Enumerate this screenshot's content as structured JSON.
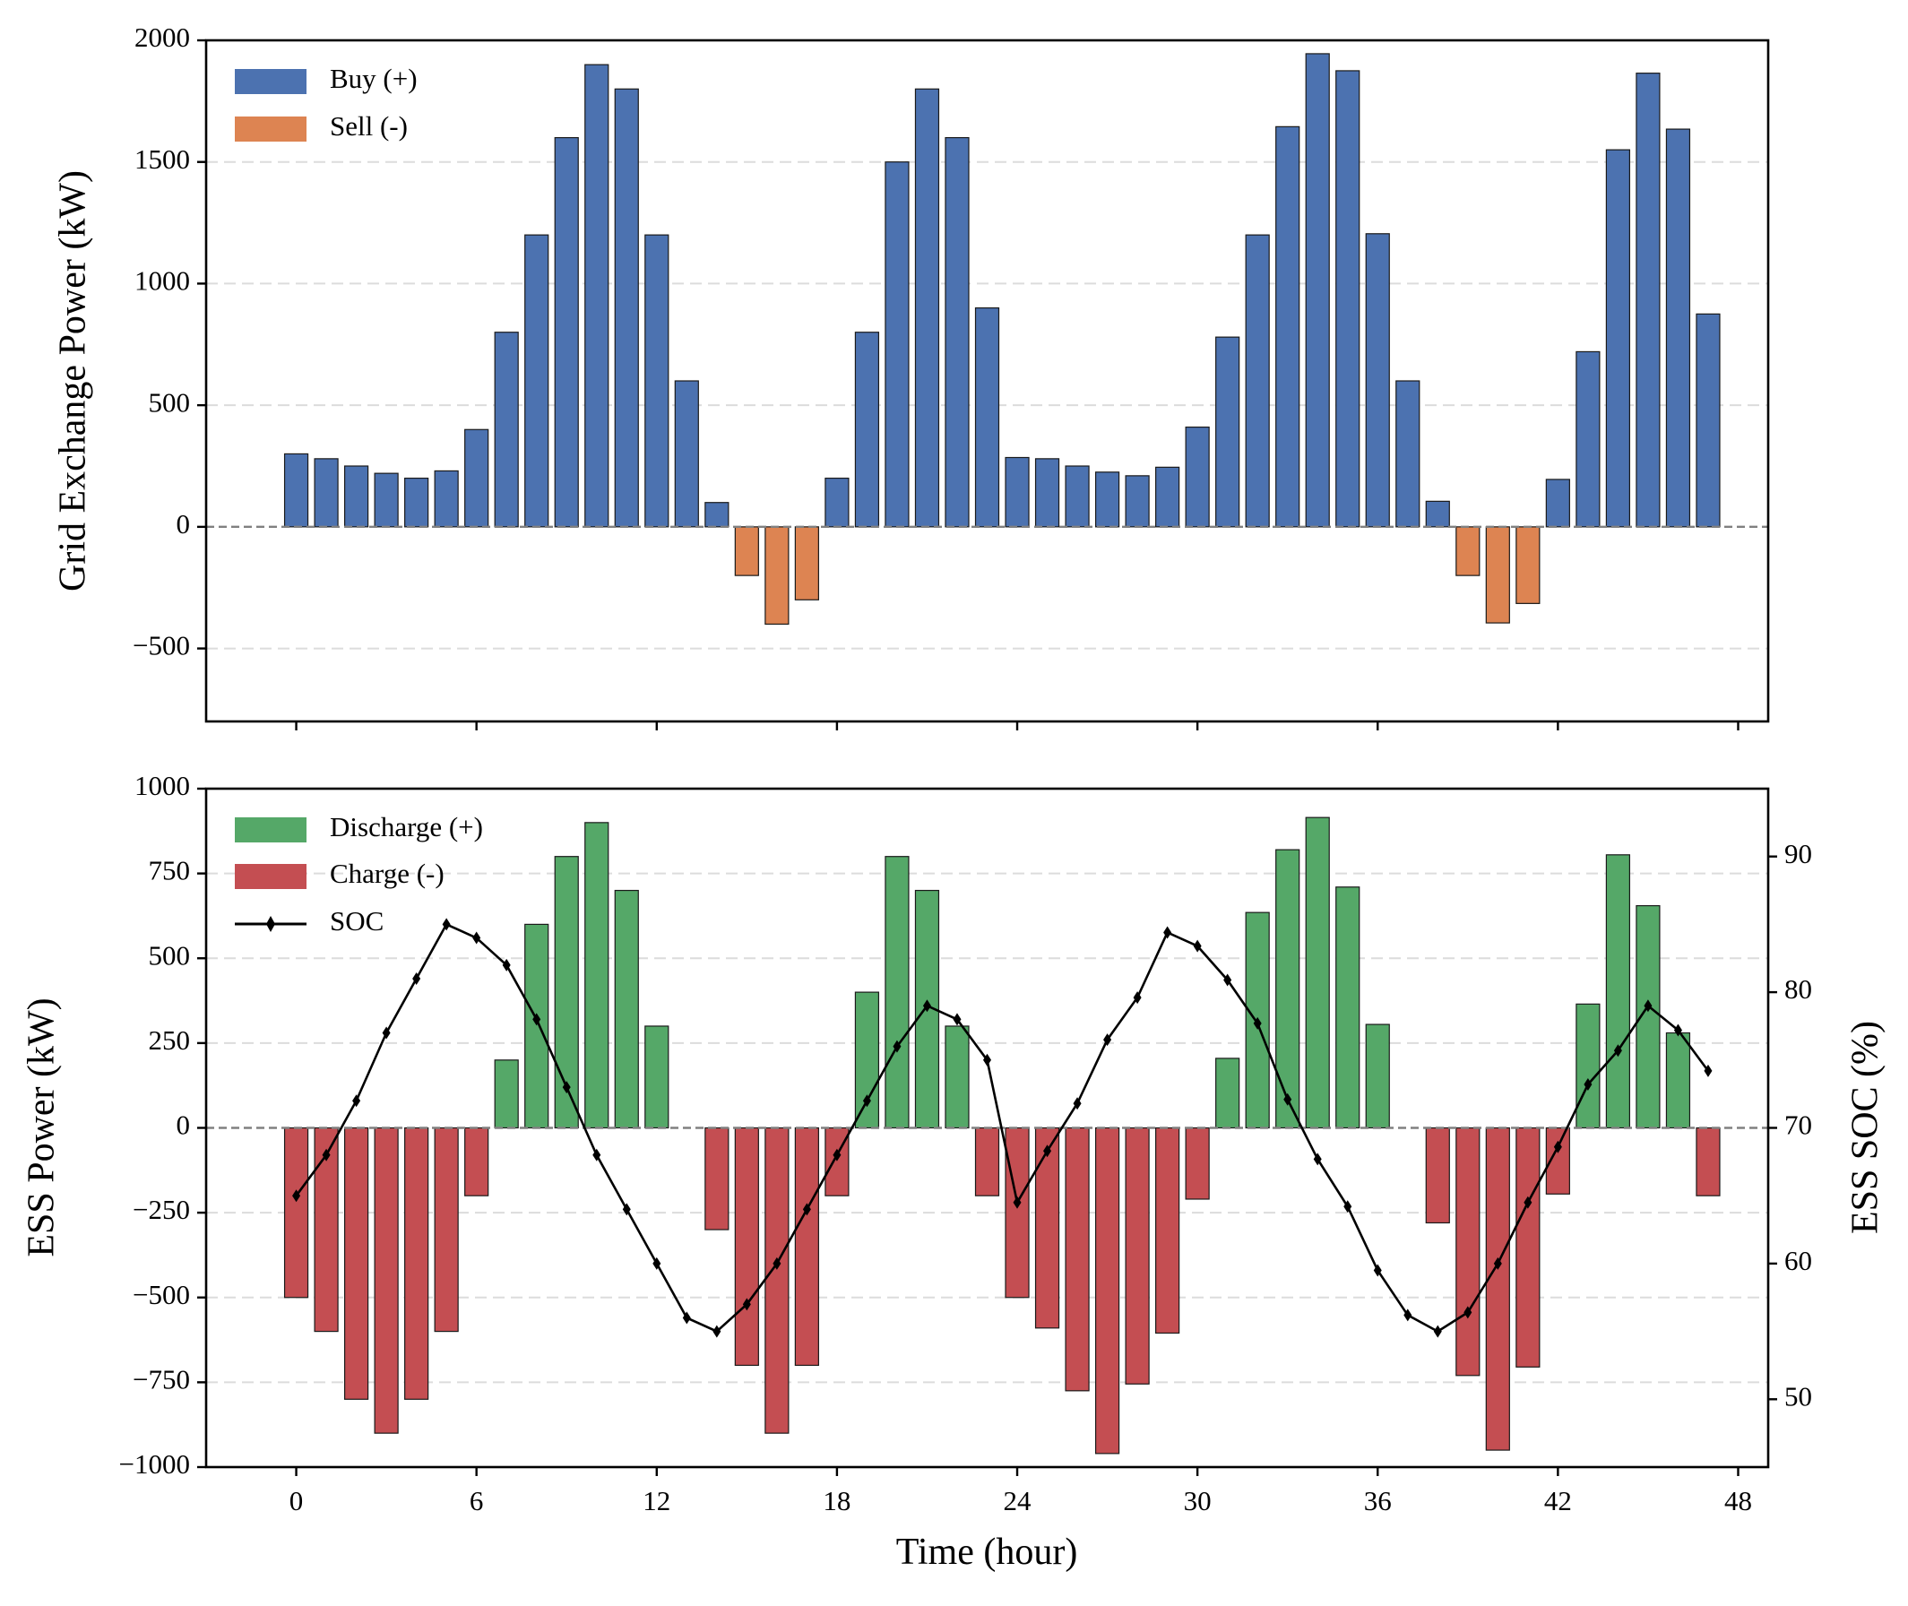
{
  "colors": {
    "buy": "#4c72b0",
    "sell": "#dd8452",
    "discharge": "#55a868",
    "charge": "#c44e52",
    "soc": "#000000"
  },
  "chart_data": [
    {
      "type": "bar",
      "name": "grid-exchange",
      "ylabel": "Grid Exchange Power (kW)",
      "xlabel": "",
      "ylim": [
        -800,
        2000
      ],
      "xlim": [
        -3,
        49
      ],
      "xticks": [
        0,
        6,
        12,
        18,
        24,
        30,
        36,
        42,
        48
      ],
      "yticks": [
        -500,
        0,
        500,
        1000,
        1500,
        2000
      ],
      "ytick_labels": [
        "−500",
        "0",
        "500",
        "1000",
        "1500",
        "2000"
      ],
      "legend": {
        "position": "top-left",
        "entries": [
          "Buy (+)",
          "Sell (-)"
        ]
      },
      "x": [
        0,
        1,
        2,
        3,
        4,
        5,
        6,
        7,
        8,
        9,
        10,
        11,
        12,
        13,
        14,
        15,
        16,
        17,
        18,
        19,
        20,
        21,
        22,
        23,
        24,
        25,
        26,
        27,
        28,
        29,
        30,
        31,
        32,
        33,
        34,
        35,
        36,
        37,
        38,
        39,
        40,
        41,
        42,
        43,
        44,
        45,
        46,
        47
      ],
      "series": [
        {
          "name": "Buy (+)",
          "values": [
            300,
            280,
            250,
            220,
            200,
            230,
            400,
            800,
            1200,
            1600,
            1900,
            1800,
            1200,
            600,
            100,
            0,
            0,
            0,
            200,
            800,
            1500,
            1800,
            1600,
            900,
            285,
            280,
            250,
            225,
            210,
            245,
            410,
            780,
            1200,
            1645,
            1945,
            1875,
            1205,
            600,
            105,
            0,
            0,
            0,
            195,
            720,
            1550,
            1865,
            1635,
            875
          ]
        },
        {
          "name": "Sell (-)",
          "values": [
            0,
            0,
            0,
            0,
            0,
            0,
            0,
            0,
            0,
            0,
            0,
            0,
            0,
            0,
            0,
            -200,
            -400,
            -300,
            0,
            0,
            0,
            0,
            0,
            0,
            0,
            0,
            0,
            0,
            0,
            0,
            0,
            0,
            0,
            0,
            0,
            0,
            0,
            0,
            0,
            -200,
            -395,
            -315,
            0,
            0,
            0,
            0,
            0,
            0
          ]
        }
      ]
    },
    {
      "type": "bar+line",
      "name": "ess",
      "ylabel": "ESS Power (kW)",
      "y2label": "ESS SOC (%)",
      "xlabel": "Time (hour)",
      "ylim": [
        -1000,
        1000
      ],
      "y2lim": [
        45,
        95
      ],
      "xlim": [
        -3,
        49
      ],
      "xticks": [
        0,
        6,
        12,
        18,
        24,
        30,
        36,
        42,
        48
      ],
      "xtick_labels": [
        "0",
        "6",
        "12",
        "18",
        "24",
        "30",
        "36",
        "42",
        "48"
      ],
      "yticks": [
        -1000,
        -750,
        -500,
        -250,
        0,
        250,
        500,
        750,
        1000
      ],
      "ytick_labels": [
        "−1000",
        "−750",
        "−500",
        "−250",
        "0",
        "250",
        "500",
        "750",
        "1000"
      ],
      "y2ticks": [
        50,
        60,
        70,
        80,
        90
      ],
      "y2tick_labels": [
        "50",
        "60",
        "70",
        "80",
        "90"
      ],
      "legend": {
        "position": "top-left",
        "entries": [
          "Discharge (+)",
          "Charge (-)",
          "SOC"
        ]
      },
      "x": [
        0,
        1,
        2,
        3,
        4,
        5,
        6,
        7,
        8,
        9,
        10,
        11,
        12,
        13,
        14,
        15,
        16,
        17,
        18,
        19,
        20,
        21,
        22,
        23,
        24,
        25,
        26,
        27,
        28,
        29,
        30,
        31,
        32,
        33,
        34,
        35,
        36,
        37,
        38,
        39,
        40,
        41,
        42,
        43,
        44,
        45,
        46,
        47
      ],
      "series": [
        {
          "name": "Discharge (+)",
          "values": [
            0,
            0,
            0,
            0,
            0,
            0,
            0,
            200,
            600,
            800,
            900,
            700,
            300,
            0,
            0,
            0,
            0,
            0,
            0,
            400,
            800,
            700,
            300,
            0,
            0,
            0,
            0,
            0,
            0,
            0,
            0,
            205,
            635,
            820,
            915,
            710,
            305,
            0,
            0,
            0,
            0,
            0,
            0,
            365,
            805,
            655,
            280,
            0
          ]
        },
        {
          "name": "Charge (-)",
          "values": [
            -500,
            -600,
            -800,
            -900,
            -800,
            -600,
            -200,
            0,
            0,
            0,
            0,
            0,
            0,
            0,
            -300,
            -700,
            -900,
            -700,
            -200,
            0,
            0,
            0,
            0,
            -200,
            -500,
            -590,
            -775,
            -960,
            -755,
            -605,
            -210,
            0,
            0,
            0,
            0,
            0,
            0,
            0,
            -280,
            -730,
            -950,
            -705,
            -195,
            0,
            0,
            0,
            0,
            -200
          ]
        },
        {
          "name": "SOC",
          "axis": "right",
          "values": [
            65,
            68,
            72,
            77,
            81,
            85,
            84,
            82,
            78,
            73,
            68,
            64,
            60,
            56,
            55,
            57,
            60,
            64,
            68,
            72,
            76,
            79,
            78,
            75,
            64.5,
            68.3,
            71.8,
            76.5,
            79.6,
            84.4,
            83.4,
            80.9,
            77.7,
            72.1,
            67.7,
            64.2,
            59.5,
            56.2,
            55,
            56.4,
            60,
            64.5,
            68.6,
            73.2,
            75.7,
            79,
            77.2,
            74.2
          ]
        }
      ]
    }
  ]
}
